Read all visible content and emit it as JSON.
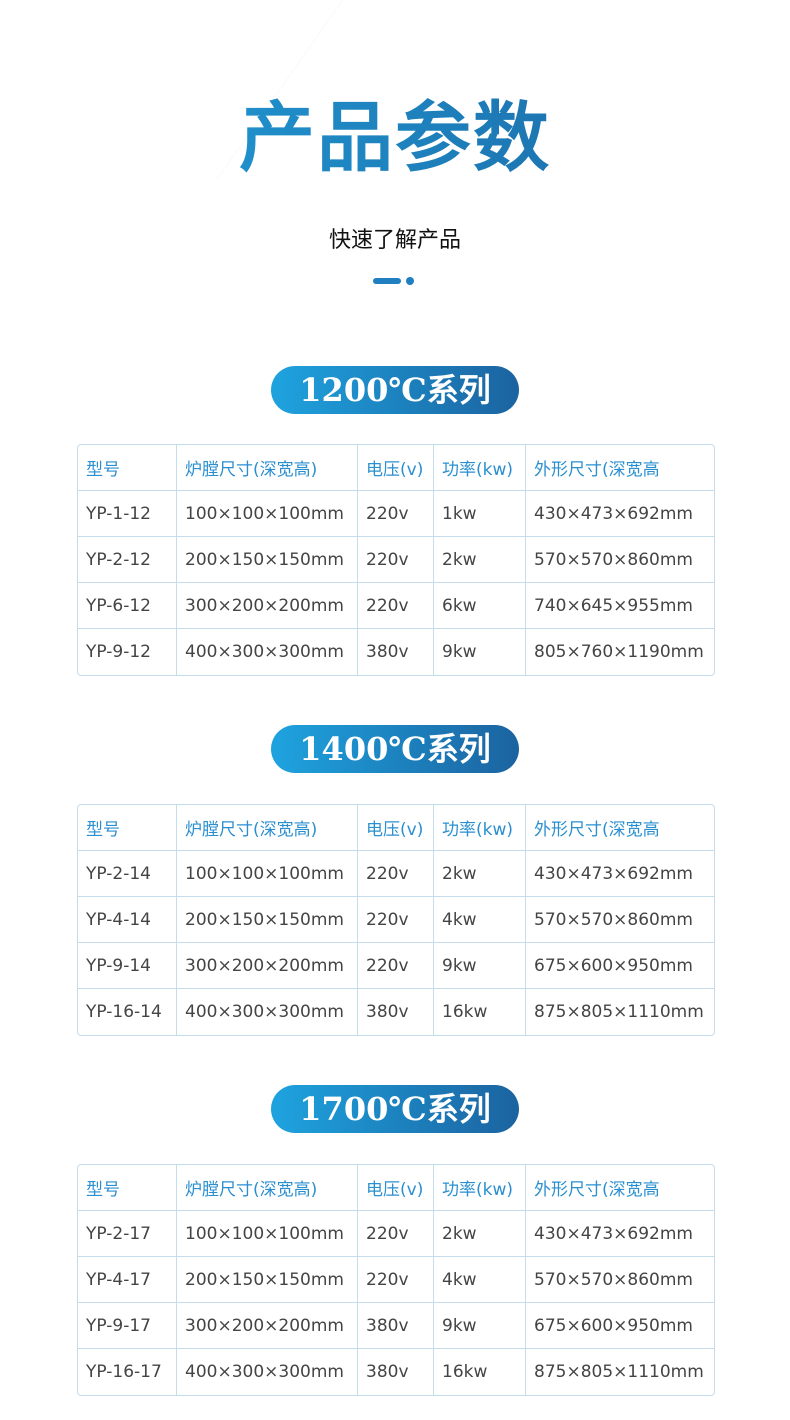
{
  "header": {
    "title": "产品参数",
    "subtitle": "快速了解产品"
  },
  "columns": [
    "型号",
    "炉膛尺寸(深宽高)",
    "电压(v)",
    "功率(kw)",
    "外形尺寸(深宽高"
  ],
  "series": [
    {
      "label": "1200℃系列",
      "rows": [
        [
          "YP-1-12",
          "100×100×100mm",
          "220v",
          "1kw",
          "430×473×692mm"
        ],
        [
          "YP-2-12",
          "200×150×150mm",
          "220v",
          "2kw",
          "570×570×860mm"
        ],
        [
          "YP-6-12",
          "300×200×200mm",
          "220v",
          "6kw",
          "740×645×955mm"
        ],
        [
          "YP-9-12",
          "400×300×300mm",
          "380v",
          "9kw",
          "805×760×1190mm"
        ]
      ]
    },
    {
      "label": "1400℃系列",
      "rows": [
        [
          "YP-2-14",
          "100×100×100mm",
          "220v",
          "2kw",
          "430×473×692mm"
        ],
        [
          "YP-4-14",
          "200×150×150mm",
          "220v",
          "4kw",
          "570×570×860mm"
        ],
        [
          "YP-9-14",
          "300×200×200mm",
          "220v",
          "9kw",
          "675×600×950mm"
        ],
        [
          "YP-16-14",
          "400×300×300mm",
          "380v",
          "16kw",
          "875×805×1110mm"
        ]
      ]
    },
    {
      "label": "1700℃系列",
      "rows": [
        [
          "YP-2-17",
          "100×100×100mm",
          "220v",
          "2kw",
          "430×473×692mm"
        ],
        [
          "YP-4-17",
          "200×150×150mm",
          "220v",
          "4kw",
          "570×570×860mm"
        ],
        [
          "YP-9-17",
          "300×200×200mm",
          "380v",
          "9kw",
          "675×600×950mm"
        ],
        [
          "YP-16-17",
          "400×300×300mm",
          "380v",
          "16kw",
          "875×805×1110mm"
        ]
      ]
    }
  ],
  "colors": {
    "accent": "#1f7fc0",
    "header_text": "#2a8fd0",
    "gradient_start": "#1ea3df",
    "gradient_end": "#1b63a0"
  }
}
